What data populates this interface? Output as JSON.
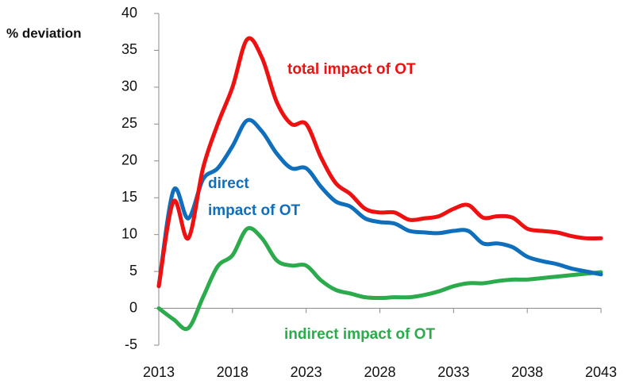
{
  "chart_data": {
    "type": "line",
    "y_label": "% deviation",
    "x": [
      2013,
      2014,
      2015,
      2016,
      2017,
      2018,
      2019,
      2020,
      2021,
      2022,
      2023,
      2024,
      2025,
      2026,
      2027,
      2028,
      2029,
      2030,
      2031,
      2032,
      2033,
      2034,
      2035,
      2036,
      2037,
      2038,
      2039,
      2040,
      2041,
      2042,
      2043
    ],
    "series": [
      {
        "name": "total impact of OT",
        "color": "#ee1111",
        "values": [
          3,
          14.5,
          9.5,
          19,
          25,
          30,
          36.5,
          34,
          28,
          25,
          25,
          20.5,
          17,
          15.5,
          13.5,
          13,
          13,
          12,
          12.2,
          12.5,
          13.5,
          14,
          12.3,
          12.5,
          12.3,
          10.8,
          10.5,
          10.3,
          9.8,
          9.5,
          9.5
        ]
      },
      {
        "name": "direct impact of OT",
        "color": "#0f6fbd",
        "values": [
          3,
          16,
          12.2,
          17.5,
          19,
          22,
          25.5,
          24,
          21,
          19,
          19,
          16.5,
          14.5,
          13.8,
          12.2,
          11.7,
          11.5,
          10.5,
          10.3,
          10.2,
          10.5,
          10.5,
          8.8,
          8.8,
          8.3,
          7,
          6.4,
          6,
          5.4,
          5,
          4.6
        ]
      },
      {
        "name": "indirect impact of OT",
        "color": "#2bab4b",
        "values": [
          0,
          -1.5,
          -2.7,
          1.5,
          5.7,
          7.2,
          10.8,
          9.5,
          6.5,
          5.8,
          5.8,
          3.8,
          2.5,
          2,
          1.5,
          1.4,
          1.5,
          1.5,
          1.8,
          2.3,
          3,
          3.4,
          3.4,
          3.7,
          3.9,
          3.9,
          4.1,
          4.3,
          4.5,
          4.7,
          4.9
        ]
      }
    ],
    "xlim": [
      2013,
      2043
    ],
    "xticks": [
      2013,
      2018,
      2023,
      2028,
      2033,
      2038,
      2043
    ],
    "ylim": [
      -5,
      40
    ],
    "yticks": [
      -5,
      0,
      5,
      10,
      15,
      20,
      25,
      30,
      35,
      40
    ]
  }
}
